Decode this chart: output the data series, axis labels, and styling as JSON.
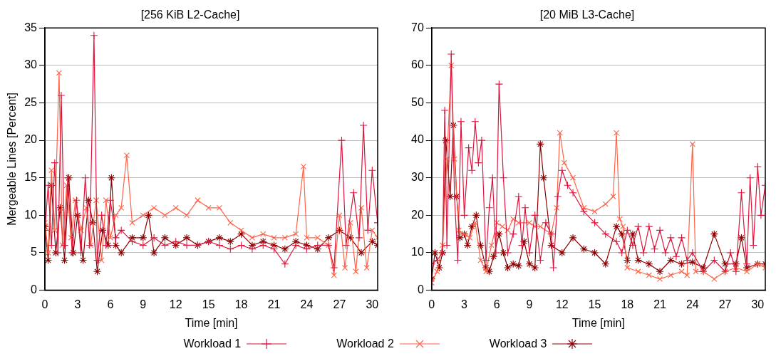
{
  "chart_data": [
    {
      "type": "line",
      "title": "[256 KiB L2-Cache]",
      "xlabel": "Time [min]",
      "ylabel": "Mergeable Lines [Percent]",
      "xlim": [
        0,
        30.5
      ],
      "xticks": [
        0,
        3,
        6,
        9,
        12,
        15,
        18,
        21,
        24,
        27,
        30
      ],
      "ylim": [
        0,
        35
      ],
      "yticks": [
        0,
        5,
        10,
        15,
        20,
        25,
        30,
        35
      ],
      "grid": "y",
      "legend": "bottom",
      "series": [
        {
          "name": "Workload 1",
          "color": "#dc143c",
          "marker": "cross",
          "x": [
            0,
            0.3,
            0.6,
            0.9,
            1.2,
            1.5,
            1.8,
            2.1,
            2.5,
            2.9,
            3.3,
            3.7,
            4.1,
            4.5,
            4.8,
            5.2,
            5.6,
            6,
            6.5,
            7,
            8,
            9,
            10,
            11,
            12,
            13,
            14,
            15,
            16,
            17,
            18,
            19,
            20,
            21,
            22,
            23,
            24,
            25,
            26,
            26.5,
            27.2,
            27.6,
            28.3,
            28.8,
            29.2,
            29.6,
            30,
            30.5
          ],
          "values": [
            8,
            14,
            6,
            17,
            5,
            26,
            6,
            15,
            5,
            12,
            5,
            15,
            6,
            34,
            4,
            10,
            6,
            12,
            7,
            8,
            6.5,
            6,
            7,
            6,
            6.5,
            6,
            6,
            6.5,
            6,
            5.5,
            6,
            5.5,
            6,
            5.5,
            3.5,
            6,
            5.5,
            6,
            6,
            3,
            20,
            6,
            13,
            7,
            22,
            8,
            16,
            9
          ]
        },
        {
          "name": "Workload 2",
          "color": "#ff6347",
          "marker": "cross",
          "x": [
            0,
            0.3,
            0.6,
            0.9,
            1.3,
            1.6,
            2,
            2.4,
            2.8,
            3.3,
            3.8,
            4.2,
            4.7,
            5.2,
            5.6,
            6,
            6.5,
            7,
            7.5,
            8,
            9,
            10,
            11,
            12,
            13,
            14,
            15,
            16,
            17,
            18,
            19,
            20,
            21,
            22,
            23,
            23.7,
            24,
            25,
            26,
            26.5,
            27,
            27.5,
            28,
            28.5,
            29,
            29.5,
            30,
            30.5
          ],
          "values": [
            9,
            5,
            16,
            8,
            29,
            6,
            14,
            7,
            12,
            8,
            11,
            6,
            12,
            4,
            12,
            7,
            10,
            11,
            18,
            9,
            10,
            11,
            10,
            11,
            10,
            12,
            11,
            11,
            9,
            8,
            7,
            7.5,
            7,
            7,
            7.5,
            16.5,
            7,
            7,
            6,
            2,
            10,
            3,
            9,
            2.5,
            11,
            3,
            8,
            7
          ]
        },
        {
          "name": "Workload 3",
          "color": "#8b0000",
          "marker": "cross",
          "x": [
            0,
            0.3,
            0.6,
            1,
            1.4,
            1.8,
            2.2,
            2.6,
            3,
            3.5,
            4,
            4.4,
            4.8,
            5.3,
            5.8,
            6.1,
            6.5,
            7,
            8,
            9,
            9.5,
            10,
            11,
            12,
            13,
            14,
            15,
            16,
            17,
            18,
            19,
            20,
            21,
            22,
            23,
            24,
            25,
            26,
            27,
            28,
            29,
            30,
            30.5
          ],
          "values": [
            8.5,
            4,
            14,
            5,
            11,
            4,
            15,
            5,
            10,
            4,
            12,
            9,
            2.5,
            8,
            6,
            15,
            6,
            5,
            7,
            7,
            10,
            5,
            7,
            6,
            7,
            6,
            6.5,
            7,
            6.5,
            7.5,
            6,
            6.5,
            6,
            5.5,
            6.5,
            6,
            5.5,
            7,
            8,
            7,
            5,
            6.5,
            6
          ]
        }
      ]
    },
    {
      "type": "line",
      "title": "[20 MiB L3-Cache]",
      "xlabel": "Time [min]",
      "xlim": [
        0,
        30.7
      ],
      "xticks": [
        0,
        3,
        6,
        9,
        12,
        15,
        18,
        21,
        24,
        27,
        30
      ],
      "ylim": [
        0,
        70
      ],
      "yticks": [
        0,
        10,
        20,
        30,
        40,
        50,
        60,
        70
      ],
      "grid": "y",
      "series": [
        {
          "color": "#dc143c",
          "marker": "cross",
          "x": [
            0,
            0.5,
            1,
            1.2,
            1.4,
            1.8,
            2.1,
            2.4,
            2.7,
            3,
            3.4,
            3.7,
            4,
            4.3,
            4.6,
            5,
            5.3,
            5.6,
            5.9,
            6.2,
            6.6,
            7,
            7.5,
            8,
            8.3,
            8.6,
            9,
            9.5,
            10,
            10.5,
            11,
            11.2,
            11.6,
            12,
            12.5,
            13,
            14,
            15,
            16,
            17,
            17.5,
            18,
            18.5,
            19,
            19.5,
            20,
            20.5,
            21,
            21.5,
            22,
            22.5,
            23,
            23.5,
            24,
            25,
            26,
            27,
            27.5,
            28,
            28.5,
            29,
            29.3,
            29.6,
            30,
            30.3,
            30.7
          ],
          "values": [
            7,
            8,
            10,
            48,
            12,
            63,
            25,
            8,
            45,
            20,
            38,
            32,
            45,
            34,
            40,
            8,
            22,
            30,
            10,
            55,
            30,
            10,
            15,
            25,
            12,
            22,
            10,
            20,
            8,
            18,
            15,
            6,
            25,
            32,
            28,
            26,
            21,
            18,
            15,
            13,
            10,
            16,
            12,
            17,
            10,
            17,
            11,
            16,
            10,
            14,
            9,
            14,
            8,
            10,
            5,
            8,
            5,
            10,
            5,
            26,
            7,
            30,
            12,
            33,
            20,
            28
          ]
        },
        {
          "color": "#ff6347",
          "marker": "cross",
          "x": [
            0,
            0.5,
            1,
            1.4,
            1.8,
            2.1,
            2.5,
            3,
            3.5,
            4,
            4.5,
            5,
            5.5,
            6,
            6.5,
            7,
            7.5,
            8,
            9,
            9.5,
            10,
            11,
            11.5,
            11.8,
            12.2,
            13,
            14,
            15,
            16,
            16.7,
            17,
            17.3,
            17.6,
            18,
            19,
            20,
            21,
            22,
            23,
            23.5,
            24,
            24.3,
            25,
            26,
            27,
            28,
            29,
            30,
            30.7
          ],
          "values": [
            2,
            5,
            12,
            35,
            60,
            35,
            16,
            15,
            14,
            18,
            8,
            5,
            12,
            18,
            17,
            16,
            19,
            18,
            18,
            17,
            17,
            15,
            22,
            42,
            34,
            30,
            22,
            21,
            23,
            25,
            42,
            19,
            17,
            6,
            5,
            4,
            3,
            4,
            5,
            4,
            39,
            5,
            5,
            3,
            5,
            6,
            5,
            7,
            6
          ]
        },
        {
          "color": "#8b0000",
          "marker": "cross",
          "x": [
            0,
            0.3,
            0.7,
            1,
            1.3,
            1.7,
            2,
            2.3,
            2.6,
            3,
            3.3,
            3.7,
            4.1,
            4.5,
            5,
            5.3,
            5.7,
            6.2,
            6.6,
            7,
            7.5,
            8,
            8.5,
            9,
            9.5,
            10,
            10.3,
            11,
            12,
            13,
            14,
            15,
            16,
            17,
            17.5,
            18,
            18.5,
            19,
            20,
            21,
            22,
            23,
            24,
            25,
            26,
            27,
            28,
            28.5,
            29,
            30,
            30.7
          ],
          "values": [
            3,
            10,
            6,
            10,
            40,
            25,
            44,
            25,
            14,
            15,
            12,
            17,
            20,
            12,
            6,
            5,
            9,
            15,
            10,
            6,
            7,
            6.5,
            13,
            7,
            6,
            39,
            30,
            12,
            10,
            14,
            11,
            10,
            7,
            17,
            15,
            8,
            15,
            8,
            7,
            5,
            8,
            7,
            7.5,
            6,
            15,
            7,
            7,
            14,
            6,
            7,
            7
          ]
        }
      ]
    }
  ]
}
